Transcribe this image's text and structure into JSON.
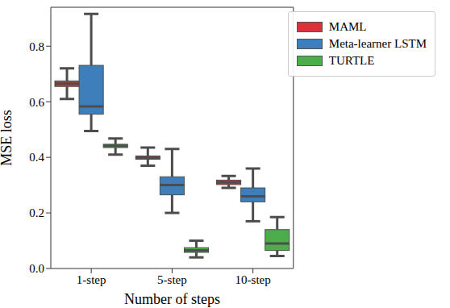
{
  "chart_data": {
    "type": "box",
    "x_label": "Number of steps",
    "y_label": "MSE loss",
    "categories": [
      "1-step",
      "5-step",
      "10-step"
    ],
    "ylim": [
      0,
      0.94
    ],
    "yticks": [
      {
        "value": 0,
        "label": "0.0"
      },
      0.2,
      0.4,
      0.6,
      0.8
    ],
    "legend": "upper right",
    "series": [
      {
        "name": "MAML",
        "color": "#d7343c",
        "values": [
          {
            "low": 0.61,
            "q1": 0.655,
            "median": 0.665,
            "q3": 0.675,
            "high": 0.72
          },
          {
            "low": 0.37,
            "q1": 0.393,
            "median": 0.398,
            "q3": 0.405,
            "high": 0.435
          },
          {
            "low": 0.29,
            "q1": 0.302,
            "median": 0.31,
            "q3": 0.318,
            "high": 0.333
          }
        ]
      },
      {
        "name": "Meta-learner LSTM",
        "color": "#3d7ebb",
        "values": [
          {
            "low": 0.495,
            "q1": 0.555,
            "median": 0.583,
            "q3": 0.731,
            "high": 0.916
          },
          {
            "low": 0.2,
            "q1": 0.265,
            "median": 0.3,
            "q3": 0.33,
            "high": 0.43
          },
          {
            "low": 0.17,
            "q1": 0.24,
            "median": 0.26,
            "q3": 0.29,
            "high": 0.36
          }
        ]
      },
      {
        "name": "TURTLE",
        "color": "#4cae4a",
        "values": [
          {
            "low": 0.41,
            "q1": 0.435,
            "median": 0.442,
            "q3": 0.447,
            "high": 0.468
          },
          {
            "low": 0.04,
            "q1": 0.058,
            "median": 0.065,
            "q3": 0.075,
            "high": 0.1
          },
          {
            "low": 0.045,
            "q1": 0.065,
            "median": 0.09,
            "q3": 0.14,
            "high": 0.185
          }
        ]
      }
    ]
  }
}
